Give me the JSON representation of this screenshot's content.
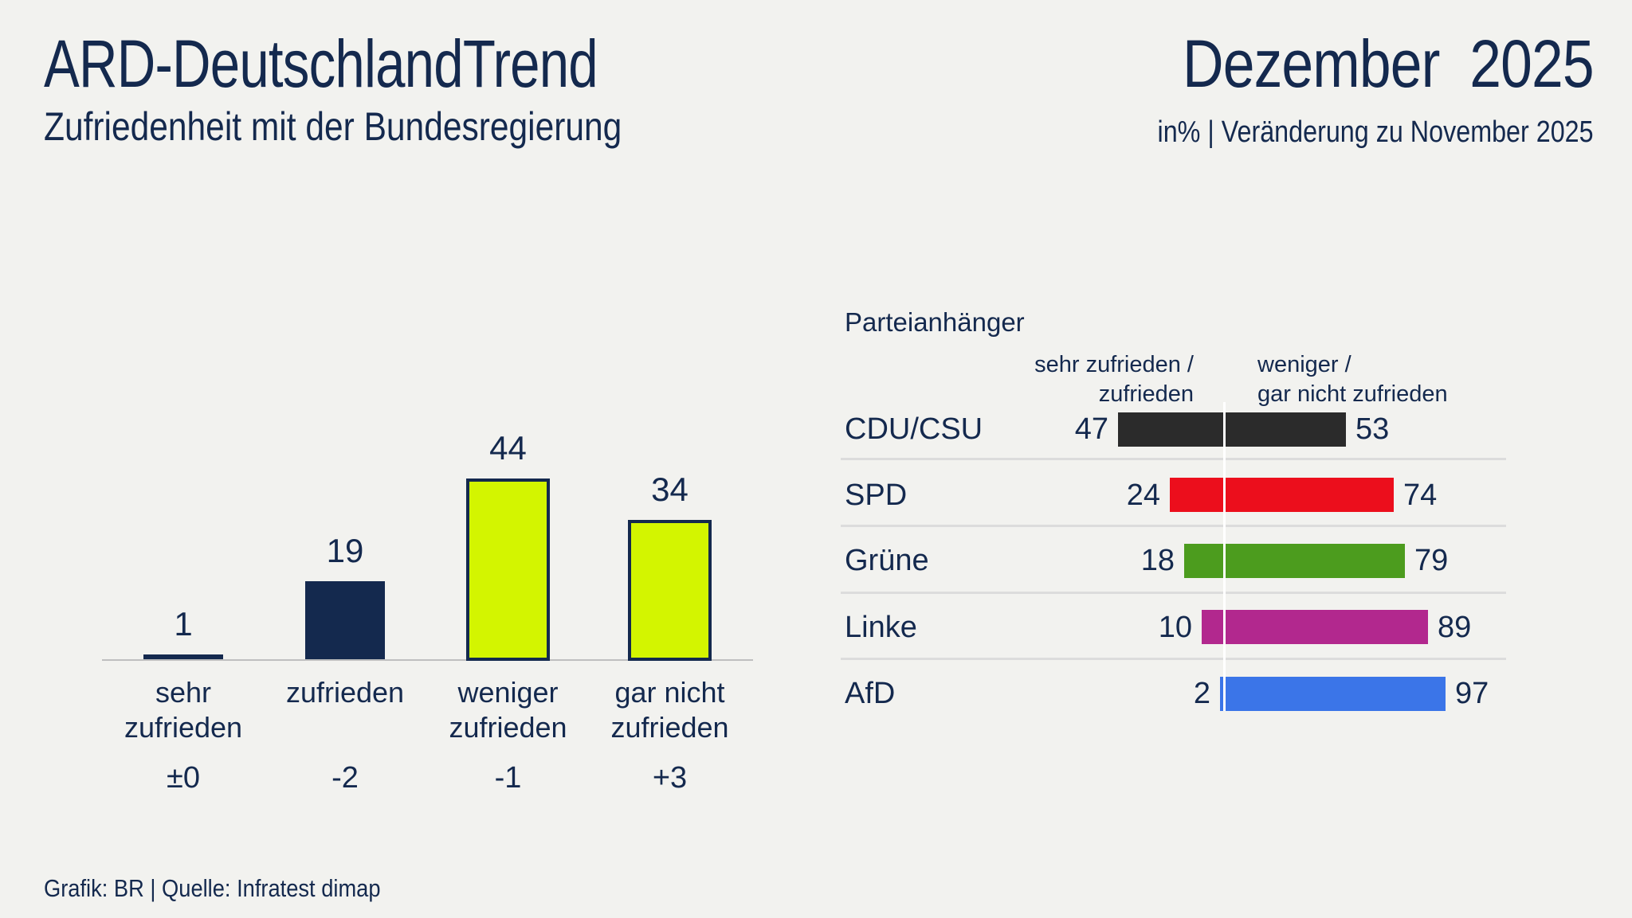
{
  "header": {
    "title_left": "ARD-DeutschlandTrend",
    "title_right": "Dezember 2025",
    "subtitle_left": "Zufriedenheit mit der Bundesregierung",
    "subtitle_right": "in% | Veränderung zu November 2025"
  },
  "footer": {
    "credit": "Grafik: BR | Quelle: Infratest dimap"
  },
  "colors": {
    "background": "#f2f2ef",
    "navy": "#14294e",
    "lime": "#d3f500",
    "axis_line": "#bfbfbf",
    "row_separator": "#dcdcdc",
    "center_line": "#ffffff",
    "cdu_csu": "#2b2b2b",
    "spd": "#ec0e1c",
    "gruene": "#4c9c1e",
    "linke": "#b2288e",
    "afd": "#3b75e8"
  },
  "chart_data": [
    {
      "type": "bar",
      "title": "Zufriedenheit mit der Bundesregierung",
      "unit": "%",
      "ylim": [
        0,
        50
      ],
      "grid": false,
      "categories": [
        "sehr\nzufrieden",
        "zufrieden",
        "weniger\nzufrieden",
        "gar nicht\nzufrieden"
      ],
      "values": [
        1,
        19,
        44,
        34
      ],
      "changes": [
        "±0",
        "-2",
        "-1",
        "+3"
      ],
      "bar_styles": [
        "navy",
        "navy",
        "lime",
        "lime"
      ]
    },
    {
      "type": "bar-diverging",
      "title": "Parteianhänger",
      "unit": "%",
      "col_header_left": [
        "sehr zufrieden /",
        "zufrieden"
      ],
      "col_header_right": [
        "weniger /",
        "gar nicht zufrieden"
      ],
      "categories": [
        "CDU/CSU",
        "SPD",
        "Grüne",
        "Linke",
        "AfD"
      ],
      "series": [
        {
          "name": "sehr zufrieden / zufrieden",
          "values": [
            47,
            24,
            18,
            10,
            2
          ]
        },
        {
          "name": "weniger / gar nicht zufrieden",
          "values": [
            53,
            74,
            79,
            89,
            97
          ]
        }
      ],
      "row_colors": [
        "#2b2b2b",
        "#ec0e1c",
        "#4c9c1e",
        "#b2288e",
        "#3b75e8"
      ]
    }
  ]
}
